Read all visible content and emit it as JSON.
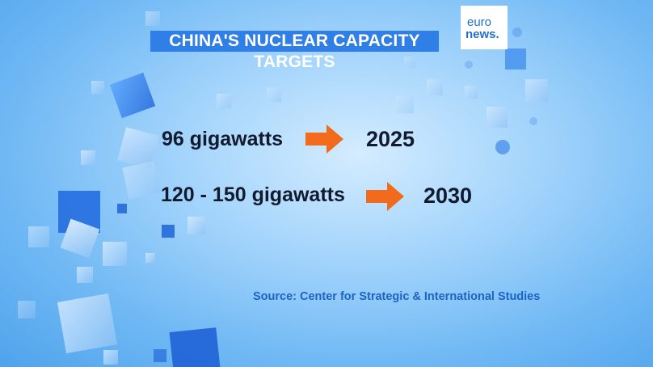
{
  "title": "CHINA'S NUCLEAR CAPACITY TARGETS",
  "logo": {
    "line1": "euro",
    "line2": "news."
  },
  "rows": [
    {
      "capacity": "96 gigawatts",
      "year": "2025"
    },
    {
      "capacity": "120 - 150 gigawatts",
      "year": "2030"
    }
  ],
  "source": "Source: Center for Strategic & International Studies",
  "colors": {
    "title_bg": "#2f7fe6",
    "arrow": "#f26a1b",
    "text": "#111a2e",
    "source": "#1d63c7"
  },
  "icons": [
    "right-arrow-icon",
    "right-arrow-icon"
  ]
}
